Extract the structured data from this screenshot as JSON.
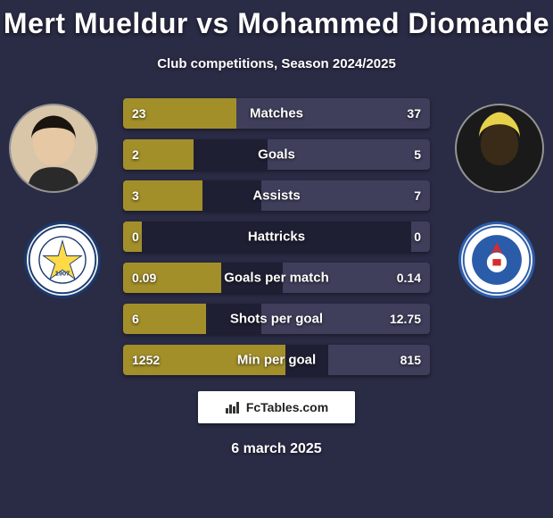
{
  "title": "Mert Mueldur vs Mohammed Diomande",
  "subtitle": "Club competitions, Season 2024/2025",
  "date": "6 march 2025",
  "brand_label": "FcTables.com",
  "colors": {
    "background": "#2a2b45",
    "row_bg": "#1e1f33",
    "player1_bar": "#a38f2a",
    "player2_bar": "#3f3f5c",
    "text": "#ffffff"
  },
  "player1": {
    "name": "Mert Mueldur",
    "club": "Fenerb.",
    "avatar_bg": "#d9c5a8",
    "avatar_hair": "#1a1410"
  },
  "player2": {
    "name": "Mohammed Diomande",
    "club": "Rangers",
    "avatar_bg": "#3a2a18",
    "avatar_hair": "#e6d24a"
  },
  "stats": [
    {
      "label": "Matches",
      "v1": "23",
      "v2": "37",
      "w1": 37,
      "w2": 63
    },
    {
      "label": "Goals",
      "v1": "2",
      "v2": "5",
      "w1": 23,
      "w2": 53
    },
    {
      "label": "Assists",
      "v1": "3",
      "v2": "7",
      "w1": 26,
      "w2": 55
    },
    {
      "label": "Hattricks",
      "v1": "0",
      "v2": "0",
      "w1": 6,
      "w2": 6
    },
    {
      "label": "Goals per match",
      "v1": "0.09",
      "v2": "0.14",
      "w1": 32,
      "w2": 48
    },
    {
      "label": "Shots per goal",
      "v1": "6",
      "v2": "12.75",
      "w1": 27,
      "w2": 55
    },
    {
      "label": "Min per goal",
      "v1": "1252",
      "v2": "815",
      "w1": 53,
      "w2": 33
    }
  ]
}
